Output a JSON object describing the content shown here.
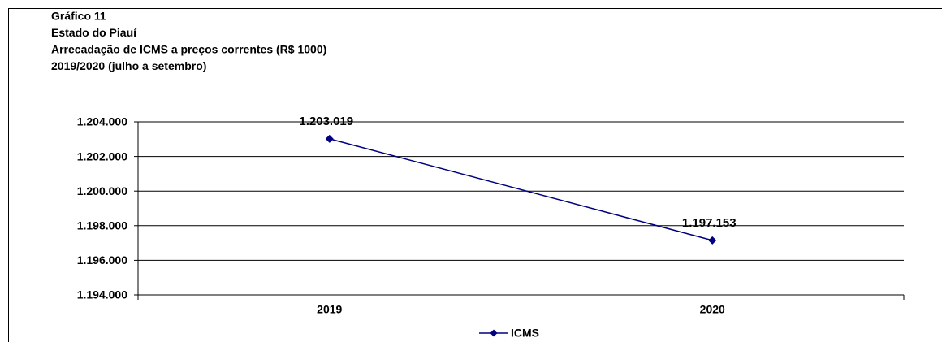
{
  "chart_data": {
    "type": "line",
    "title": [
      "Gráfico 11",
      "Estado do Piauí",
      "Arrecadação de ICMS a preços correntes (R$ 1000)",
      "2019/2020 (julho a setembro)"
    ],
    "categories": [
      "2019",
      "2020"
    ],
    "series": [
      {
        "name": "ICMS",
        "color": "#000080",
        "values": [
          1203019,
          1197153
        ],
        "value_labels": [
          "1.203.019",
          "1.197.153"
        ]
      }
    ],
    "ylim": [
      1194000,
      1204000
    ],
    "yticks": [
      {
        "value": 1194000,
        "label": "1.194.000"
      },
      {
        "value": 1196000,
        "label": "1.196.000"
      },
      {
        "value": 1198000,
        "label": "1.198.000"
      },
      {
        "value": 1200000,
        "label": "1.200.000"
      },
      {
        "value": 1202000,
        "label": "1.202.000"
      },
      {
        "value": 1204000,
        "label": "1.204.000"
      }
    ],
    "grid": true,
    "legend": "bottom"
  }
}
